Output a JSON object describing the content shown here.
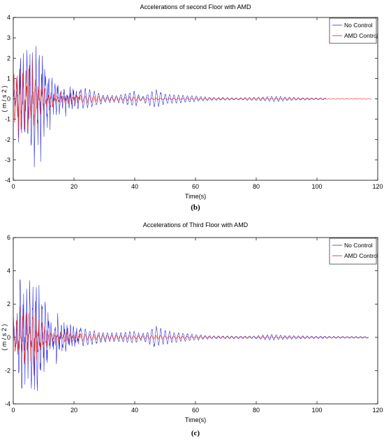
{
  "chart_data": [
    {
      "type": "line",
      "title": "Accelerations of second Floor with AMD",
      "xlabel": "Time(s)",
      "ylabel": "( m / s 2 )",
      "xlim": [
        0,
        120
      ],
      "ylim": [
        -4,
        4
      ],
      "xticks": [
        "0",
        "20",
        "40",
        "60",
        "80",
        "100",
        "120"
      ],
      "yticks": [
        "4",
        "3",
        "2",
        "1",
        "0",
        "-1",
        "-2",
        "-3",
        "-4"
      ],
      "legend_position": "top-right",
      "caption": "(b)",
      "series": [
        {
          "name": "No Control",
          "color": "#3030e0",
          "end_time": 103,
          "peaks": [
            [
              1,
              0.5
            ],
            [
              2,
              3.4
            ],
            [
              3,
              -2.6
            ],
            [
              4,
              3.1
            ],
            [
              5,
              -3.6
            ],
            [
              6,
              3.3
            ],
            [
              7,
              -3.4
            ],
            [
              8,
              2.9
            ],
            [
              9,
              -3.8
            ],
            [
              10,
              2.8
            ],
            [
              11,
              -2.0
            ],
            [
              13,
              -1.9
            ],
            [
              15,
              1.1
            ],
            [
              20,
              0.6
            ],
            [
              25,
              0.5
            ],
            [
              30,
              0.2
            ],
            [
              35,
              0.2
            ],
            [
              40,
              0.45
            ],
            [
              42,
              0.1
            ],
            [
              45,
              0.35
            ],
            [
              47,
              0.5
            ],
            [
              50,
              0.25
            ],
            [
              55,
              0.2
            ],
            [
              60,
              0.15
            ],
            [
              65,
              0.08
            ],
            [
              75,
              0.06
            ],
            [
              82,
              0.1
            ],
            [
              86,
              0.15
            ],
            [
              90,
              0.1
            ],
            [
              95,
              0.06
            ],
            [
              103,
              0.05
            ]
          ]
        },
        {
          "name": "AMD Control",
          "color": "#e02020",
          "end_time": 118,
          "peaks": [
            [
              1,
              1.8
            ],
            [
              2,
              2.5
            ],
            [
              3,
              -1.5
            ],
            [
              4,
              2.2
            ],
            [
              5,
              -2.3
            ],
            [
              6,
              2.3
            ],
            [
              7,
              -1.7
            ],
            [
              8,
              1.4
            ],
            [
              9,
              -1.0
            ],
            [
              10,
              0.8
            ],
            [
              12,
              0.5
            ],
            [
              15,
              0.35
            ],
            [
              20,
              0.25
            ],
            [
              25,
              0.2
            ],
            [
              30,
              0.1
            ],
            [
              35,
              0.08
            ],
            [
              40,
              0.12
            ],
            [
              45,
              0.06
            ],
            [
              50,
              0.05
            ],
            [
              60,
              0.03
            ],
            [
              118,
              0.02
            ]
          ]
        }
      ]
    },
    {
      "type": "line",
      "title": "Accelerations of Third Floor with AMD",
      "xlabel": "Time(s)",
      "ylabel": "( m / s 2 )",
      "xlim": [
        0,
        120
      ],
      "ylim": [
        -4,
        6
      ],
      "xticks": [
        "0",
        "20",
        "40",
        "60",
        "80",
        "100",
        "120"
      ],
      "yticks": [
        "6",
        "4",
        "2",
        "0",
        "-2",
        "-4"
      ],
      "legend_position": "top-right",
      "caption": "(c)",
      "series": [
        {
          "name": "No Control",
          "color": "#3030e0",
          "end_time": 117,
          "peaks": [
            [
              1,
              0.8
            ],
            [
              2,
              4.3
            ],
            [
              3,
              -3.3
            ],
            [
              4,
              3.0
            ],
            [
              5,
              -3.0
            ],
            [
              6,
              4.2
            ],
            [
              7,
              -3.6
            ],
            [
              8,
              3.5
            ],
            [
              9,
              -3.2
            ],
            [
              10,
              2.7
            ],
            [
              11,
              -2.1
            ],
            [
              13,
              1.8
            ],
            [
              15,
              1.5
            ],
            [
              17,
              1.0
            ],
            [
              20,
              0.7
            ],
            [
              25,
              0.5
            ],
            [
              30,
              0.3
            ],
            [
              35,
              0.3
            ],
            [
              40,
              0.4
            ],
            [
              42,
              0.2
            ],
            [
              45,
              0.45
            ],
            [
              47,
              0.7
            ],
            [
              50,
              0.45
            ],
            [
              55,
              0.3
            ],
            [
              60,
              0.2
            ],
            [
              65,
              0.1
            ],
            [
              75,
              0.08
            ],
            [
              80,
              0.1
            ],
            [
              85,
              0.2
            ],
            [
              90,
              0.12
            ],
            [
              100,
              0.08
            ],
            [
              117,
              0.05
            ]
          ]
        },
        {
          "name": "AMD Control",
          "color": "#e02020",
          "end_time": 117,
          "peaks": [
            [
              1,
              1.2
            ],
            [
              2,
              2.0
            ],
            [
              3,
              -1.8
            ],
            [
              4,
              2.0
            ],
            [
              5,
              -2.1
            ],
            [
              6,
              1.9
            ],
            [
              7,
              -2.8
            ],
            [
              8,
              1.5
            ],
            [
              9,
              -1.3
            ],
            [
              10,
              1.0
            ],
            [
              12,
              0.6
            ],
            [
              15,
              0.45
            ],
            [
              20,
              0.3
            ],
            [
              25,
              0.2
            ],
            [
              30,
              0.15
            ],
            [
              40,
              0.1
            ],
            [
              45,
              0.15
            ],
            [
              50,
              0.1
            ],
            [
              60,
              0.06
            ],
            [
              80,
              0.05
            ],
            [
              100,
              0.04
            ],
            [
              117,
              0.03
            ]
          ]
        }
      ]
    }
  ]
}
